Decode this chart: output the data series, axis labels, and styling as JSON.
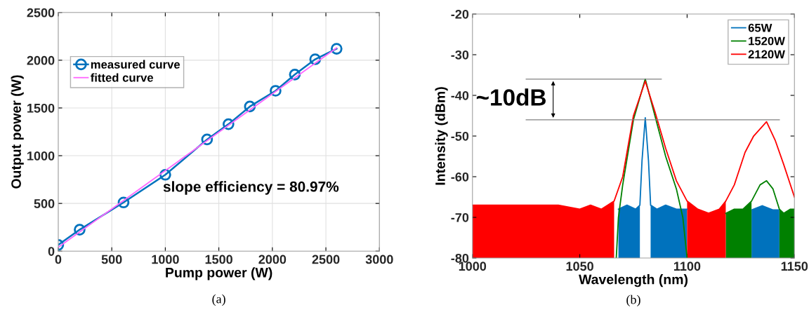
{
  "chart_data": [
    {
      "type": "line",
      "xlabel": "Pump power (W)",
      "ylabel": "Output power (W)",
      "xlim": [
        0,
        3000
      ],
      "ylim": [
        0,
        2500
      ],
      "xticks": [
        0,
        500,
        1000,
        1500,
        2000,
        2500,
        3000
      ],
      "yticks": [
        0,
        500,
        1000,
        1500,
        2000,
        2500
      ],
      "grid": true,
      "legend": "top left",
      "series": [
        {
          "name": "measured curve",
          "color": "#0072bd",
          "marker": "circle",
          "x": [
            0,
            200,
            610,
            1000,
            1390,
            1590,
            1790,
            2030,
            2210,
            2400,
            2600
          ],
          "values": [
            65,
            225,
            510,
            800,
            1170,
            1330,
            1515,
            1680,
            1850,
            2010,
            2120
          ]
        },
        {
          "name": "fitted curve",
          "color": "#ff66ff",
          "x": [
            0,
            2600
          ],
          "values": [
            40,
            2130
          ]
        }
      ],
      "annotations": [
        "slope efficiency = 80.97%",
        "(a)"
      ]
    },
    {
      "type": "line",
      "xlabel": "Wavelength (nm)",
      "ylabel": "Intensity (dBm)",
      "xlim": [
        1000,
        1150
      ],
      "ylim": [
        -80,
        -20
      ],
      "xticks": [
        1000,
        1050,
        1100,
        1150
      ],
      "yticks": [
        -80,
        -70,
        -60,
        -50,
        -40,
        -30,
        -20
      ],
      "grid": false,
      "legend": "top right",
      "series": [
        {
          "type": "area",
          "color": "#0072bd",
          "x": [
            1068,
            1068,
            1072,
            1076,
            1078,
            1078
          ],
          "values": [
            -80,
            -68,
            -67,
            -68,
            -67,
            -80
          ]
        },
        {
          "type": "area",
          "color": "#0072bd",
          "x": [
            1083,
            1083,
            1086,
            1090,
            1095,
            1100,
            1100
          ],
          "values": [
            -80,
            -67,
            -68,
            -67,
            -68,
            -68,
            -80
          ]
        },
        {
          "type": "area",
          "color": "#0072bd",
          "x": [
            1130,
            1130,
            1135,
            1140,
            1143,
            1143
          ],
          "values": [
            -80,
            -68,
            -67,
            -68,
            -68,
            -80
          ]
        },
        {
          "name": "65W",
          "color": "#0072bd",
          "x": [
            1068,
            1072,
            1076,
            1078,
            1079,
            1080.5,
            1082,
            1083,
            1086,
            1090,
            1095,
            1100
          ],
          "values": [
            -68,
            -67,
            -68,
            -67,
            -56,
            -45.5,
            -56,
            -67,
            -68,
            -67,
            -68,
            -68
          ]
        },
        {
          "type": "area",
          "color": "#008000",
          "x": [
            1118,
            1118,
            1122,
            1126,
            1130,
            1130
          ],
          "values": [
            -80,
            -69,
            -68,
            -68,
            -66,
            -80
          ]
        },
        {
          "type": "area",
          "color": "#008000",
          "x": [
            1143,
            1143,
            1145,
            1148,
            1150,
            1150
          ],
          "values": [
            -80,
            -68,
            -69,
            -68,
            -68,
            -80
          ]
        },
        {
          "name": "1520W",
          "color": "#008000",
          "x": [
            1067,
            1068,
            1070,
            1075,
            1080.5,
            1085,
            1090,
            1095,
            1098,
            1100,
            1101,
            1110,
            1118,
            1122,
            1126,
            1130,
            1134,
            1137,
            1140,
            1143,
            1145,
            1148,
            1150
          ],
          "values": [
            -80,
            -70,
            -62,
            -46,
            -36,
            -45,
            -55,
            -63,
            -70,
            -80,
            null,
            null,
            -69,
            -68,
            -68,
            -66,
            -62,
            -61,
            -63,
            -68,
            -69,
            -68,
            -68
          ]
        },
        {
          "type": "area",
          "color": "#ff0000",
          "x": [
            1000,
            1000,
            1005,
            1010,
            1020,
            1030,
            1040,
            1050,
            1055,
            1060,
            1066,
            1066
          ],
          "values": [
            -80,
            -67,
            -67,
            -67,
            -67,
            -67,
            -67,
            -68,
            -67,
            -68,
            -66,
            -80
          ]
        },
        {
          "type": "area",
          "color": "#ff0000",
          "x": [
            1100,
            1100,
            1105,
            1110,
            1115,
            1118,
            1118
          ],
          "values": [
            -80,
            -66,
            -68,
            -69,
            -68,
            -66,
            -80
          ]
        },
        {
          "name": "2120W",
          "color": "#ff0000",
          "x": [
            1000,
            1005,
            1010,
            1020,
            1030,
            1040,
            1050,
            1055,
            1060,
            1066,
            1070,
            1075,
            1080.5,
            1085,
            1090,
            1095,
            1100,
            1105,
            1110,
            1115,
            1118,
            1122,
            1127,
            1131,
            1137,
            1141,
            1145,
            1150
          ],
          "values": [
            -67,
            -67,
            -67,
            -67,
            -67,
            -67,
            -68,
            -67,
            -68,
            -66,
            -60,
            -45,
            -36.5,
            -44,
            -53,
            -61,
            -66,
            -68,
            -69,
            -68,
            -66,
            -62,
            -54,
            -50,
            -46.5,
            -51,
            -57,
            -65
          ]
        },
        {
          "color": "#808080",
          "x": [
            1025,
            1088
          ],
          "values": [
            -36,
            -36
          ]
        },
        {
          "color": "#808080",
          "x": [
            1025,
            1143
          ],
          "values": [
            -46,
            -46
          ]
        }
      ],
      "annotations": [
        "~10dB",
        "(b)"
      ]
    }
  ]
}
